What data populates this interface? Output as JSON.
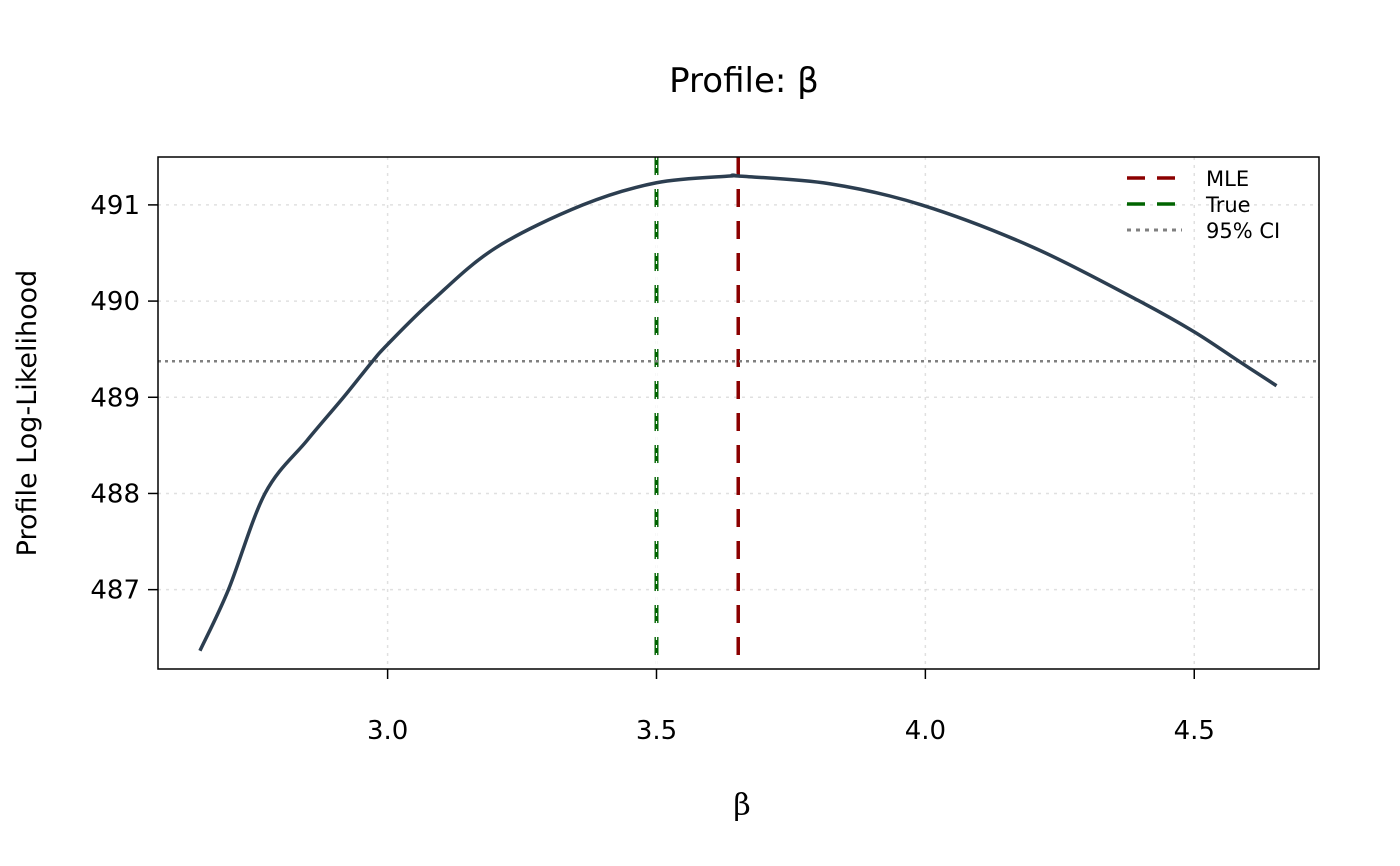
{
  "chart_data": {
    "type": "line",
    "title": "Profile: β",
    "xlabel": "β",
    "ylabel": "Profile Log-Likelihood",
    "xlim": [
      2.573,
      4.732
    ],
    "ylim": [
      486.175,
      491.498
    ],
    "xticks": [
      3.0,
      3.5,
      4.0,
      4.5
    ],
    "xtick_labels": [
      "3.0",
      "3.5",
      "4.0",
      "4.5"
    ],
    "yticks": [
      487,
      488,
      489,
      490,
      491
    ],
    "ytick_labels": [
      "487",
      "488",
      "489",
      "490",
      "491"
    ],
    "grid": true,
    "legend_position": "top-right",
    "series": [
      {
        "color": "#2c3e50",
        "x": [
          2.651,
          2.704,
          2.772,
          2.85,
          2.918,
          2.972,
          3.0,
          3.082,
          3.2,
          3.363,
          3.5,
          3.637,
          3.652,
          3.822,
          3.993,
          4.2,
          4.398,
          4.5,
          4.583,
          4.653
        ],
        "y": [
          486.365,
          487.0,
          488.0,
          488.55,
          489.0,
          489.375,
          489.55,
          490.0,
          490.55,
          491.0,
          491.23,
          491.3,
          491.3,
          491.22,
          491.0,
          490.56,
          490.0,
          489.68,
          489.375,
          489.12
        ]
      }
    ],
    "reference_lines": [
      {
        "name": "MLE",
        "orientation": "vertical",
        "value": 3.652,
        "color": "#8b0000",
        "style": "dashed"
      },
      {
        "name": "True",
        "orientation": "vertical",
        "value": 3.5,
        "color": "#006400",
        "style": "dashed"
      },
      {
        "name": "95% CI",
        "orientation": "horizontal",
        "value": 489.375,
        "color": "#808080",
        "style": "dotted"
      }
    ],
    "legend": [
      "MLE",
      "True",
      "95% CI"
    ]
  }
}
